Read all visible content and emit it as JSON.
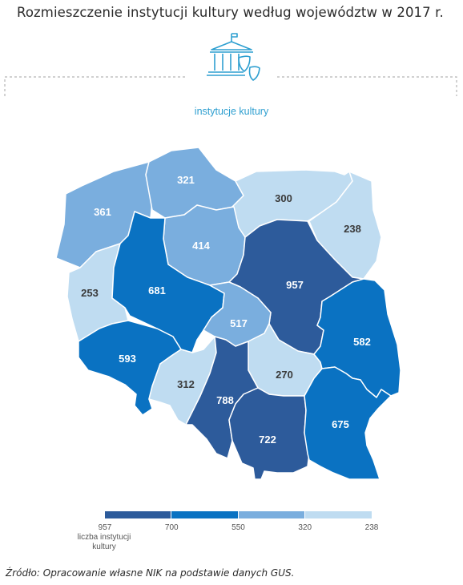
{
  "title": "Rozmieszczenie instytucji kultury według województw w 2017 r.",
  "category_label": "instytucje kultury",
  "icon_name": "museum-theatre-masks-icon",
  "regions": [
    {
      "id": "zachodniopomorskie",
      "value": "361",
      "color": "#7aaede"
    },
    {
      "id": "pomorskie",
      "value": "321",
      "color": "#7aaede"
    },
    {
      "id": "warminsko-mazurskie",
      "value": "300",
      "color": "#bfdcf1"
    },
    {
      "id": "podlaskie",
      "value": "238",
      "color": "#bfdcf1"
    },
    {
      "id": "kujawsko-pomorskie",
      "value": "414",
      "color": "#7aaede"
    },
    {
      "id": "lubuskie",
      "value": "253",
      "color": "#bfdcf1"
    },
    {
      "id": "wielkopolskie",
      "value": "681",
      "color": "#0a72c2"
    },
    {
      "id": "mazowieckie",
      "value": "957",
      "color": "#2d5b9b"
    },
    {
      "id": "lodzkie",
      "value": "517",
      "color": "#7aaede"
    },
    {
      "id": "dolnoslaskie",
      "value": "593",
      "color": "#0a72c2"
    },
    {
      "id": "opolskie",
      "value": "312",
      "color": "#bfdcf1"
    },
    {
      "id": "swietokrzyskie",
      "value": "270",
      "color": "#bfdcf1"
    },
    {
      "id": "lubelskie",
      "value": "582",
      "color": "#0a72c2"
    },
    {
      "id": "slaskie",
      "value": "788",
      "color": "#2d5b9b"
    },
    {
      "id": "malopolskie",
      "value": "722",
      "color": "#2d5b9b"
    },
    {
      "id": "podkarpackie",
      "value": "675",
      "color": "#0a72c2"
    }
  ],
  "legend": {
    "colors": [
      "#2d5b9b",
      "#0a72c2",
      "#7aaede",
      "#bfdcf1"
    ],
    "ticks": [
      "957",
      "700",
      "550",
      "320",
      "238"
    ],
    "caption": "liczba instytucji kultury"
  },
  "source": "Źródło: Opracowanie własne NIK na podstawie danych GUS."
}
